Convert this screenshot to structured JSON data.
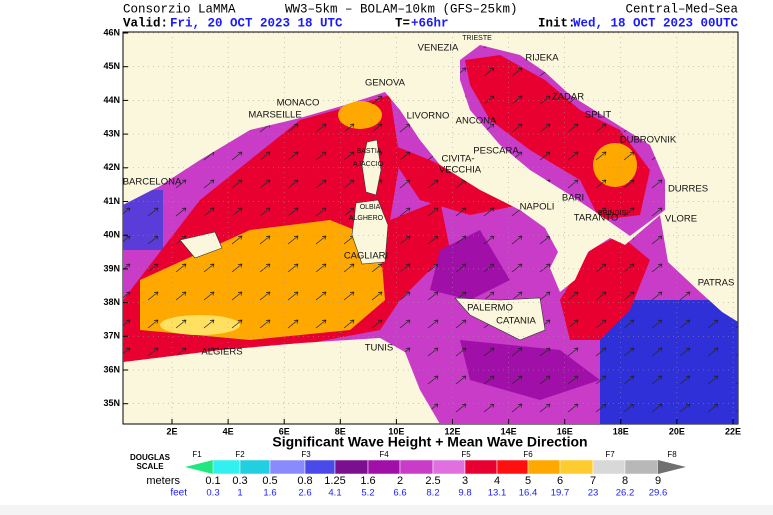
{
  "header": {
    "left": "Consorzio LaMMA",
    "center": "WW3–5km – BOLAM–10km (GFS–25km)",
    "right": "Central–Med–Sea",
    "valid_label": "Valid:",
    "valid_date": "Fri, 20 OCT 2023  18 UTC",
    "t_label": "T=",
    "t_value": "+66hr",
    "init_label": "Init:",
    "init_date": "Wed, 18 OCT 2023 00UTC"
  },
  "map": {
    "lat_labels": [
      "46N",
      "45N",
      "44N",
      "43N",
      "42N",
      "41N",
      "40N",
      "39N",
      "38N",
      "37N",
      "36N",
      "35N"
    ],
    "lon_labels": [
      "2E",
      "4E",
      "6E",
      "8E",
      "10E",
      "12E",
      "14E",
      "16E",
      "18E",
      "20E",
      "22E"
    ],
    "places": [
      "VENEZIA",
      "TRIESTE",
      "RIJEKA",
      "GENOVA",
      "MONACO",
      "MARSEILLE",
      "LIVORNO",
      "ANCONA",
      "ZADAR",
      "SPLIT",
      "DUBROVNIK",
      "BASTIA",
      "PESCARA",
      "CIVITA-",
      "VECCHIA",
      "AJACCIO",
      "BARCELONA",
      "DURRES",
      "BARI",
      "OLBIA",
      "ALGHERO",
      "NAPOLI",
      "TARANTO",
      "BRINDISI",
      "VLORE",
      "CAGLIARI",
      "PATRAS",
      "PALERMO",
      "CATANIA",
      "ALGIERS",
      "TUNIS"
    ]
  },
  "footer": {
    "title": "Significant Wave Height + Mean Wave Direction"
  },
  "legend": {
    "scale_label_1": "DOUGLAS",
    "scale_label_2": "SCALE",
    "forces": [
      "F1",
      "F2",
      "F3",
      "F4",
      "F5",
      "F6",
      "F7",
      "F8"
    ],
    "meters_label": "meters",
    "meters": [
      "0.1",
      "0.3",
      "0.5",
      "0.8",
      "1.25",
      "1.6",
      "2",
      "2.5",
      "3",
      "4",
      "5",
      "6",
      "7",
      "8",
      "9"
    ],
    "feet_label": "feet",
    "feet": [
      "0.3",
      "1",
      "1.6",
      "2.6",
      "4.1",
      "5.2",
      "6.6",
      "8.2",
      "9.8",
      "13.1",
      "16.4",
      "19.7",
      "23",
      "26.2",
      "29.6"
    ],
    "colors": [
      "#20e880",
      "#30f0f0",
      "#20d0e0",
      "#8a8aff",
      "#4a4ae8",
      "#7a1090",
      "#a010a8",
      "#c83cc8",
      "#e070e0",
      "#e80030",
      "#ff1010",
      "#ffa800",
      "#ffcc30",
      "#d8d8d8",
      "#b8b8b8",
      "#989898",
      "#707070"
    ]
  }
}
